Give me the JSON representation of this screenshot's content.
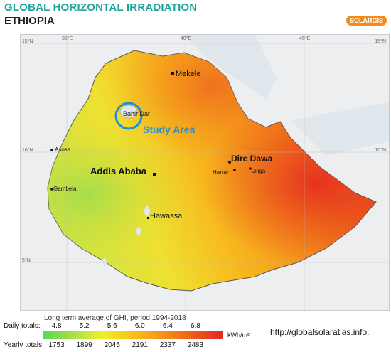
{
  "header": {
    "title": "GLOBAL HORIZONTAL IRRADIATION",
    "subtitle": "ETHIOPIA",
    "brand": "SOLARGIS"
  },
  "map": {
    "coords": {
      "lon_35": "35°E",
      "lon_40": "40°E",
      "lon_45": "45°E",
      "lat_15": "15°N",
      "lat_10": "10°N",
      "lat_5": "5°N"
    },
    "cities": {
      "mekele": "Mekele",
      "bahir_dar": "Bahir Dar",
      "asosa": "Asosa",
      "addis_ababa": "Addis Ababa",
      "dire_dawa": "Dire Dawa",
      "harrar": "Harrar",
      "jijiga": "Jijiga",
      "gambela": "Gambela",
      "hawassa": "Hawassa"
    },
    "study_area": "Study Area",
    "colors": {
      "study_area": "#1e90d8",
      "high": "#e53a1e",
      "mid": "#f5a31a",
      "low": "#e6e43a"
    }
  },
  "legend": {
    "title": "Long term average of GHI, period 1994-2018",
    "daily_label": "Daily totals:",
    "yearly_label": "Yearly totals:",
    "daily_ticks": [
      "4.8",
      "5.2",
      "5.6",
      "6.0",
      "6.4",
      "6.8"
    ],
    "yearly_ticks": [
      "1753",
      "1899",
      "2045",
      "2191",
      "2337",
      "2483"
    ],
    "unit": "kWh/m²",
    "url": "http://globalsolaratlas.info."
  }
}
